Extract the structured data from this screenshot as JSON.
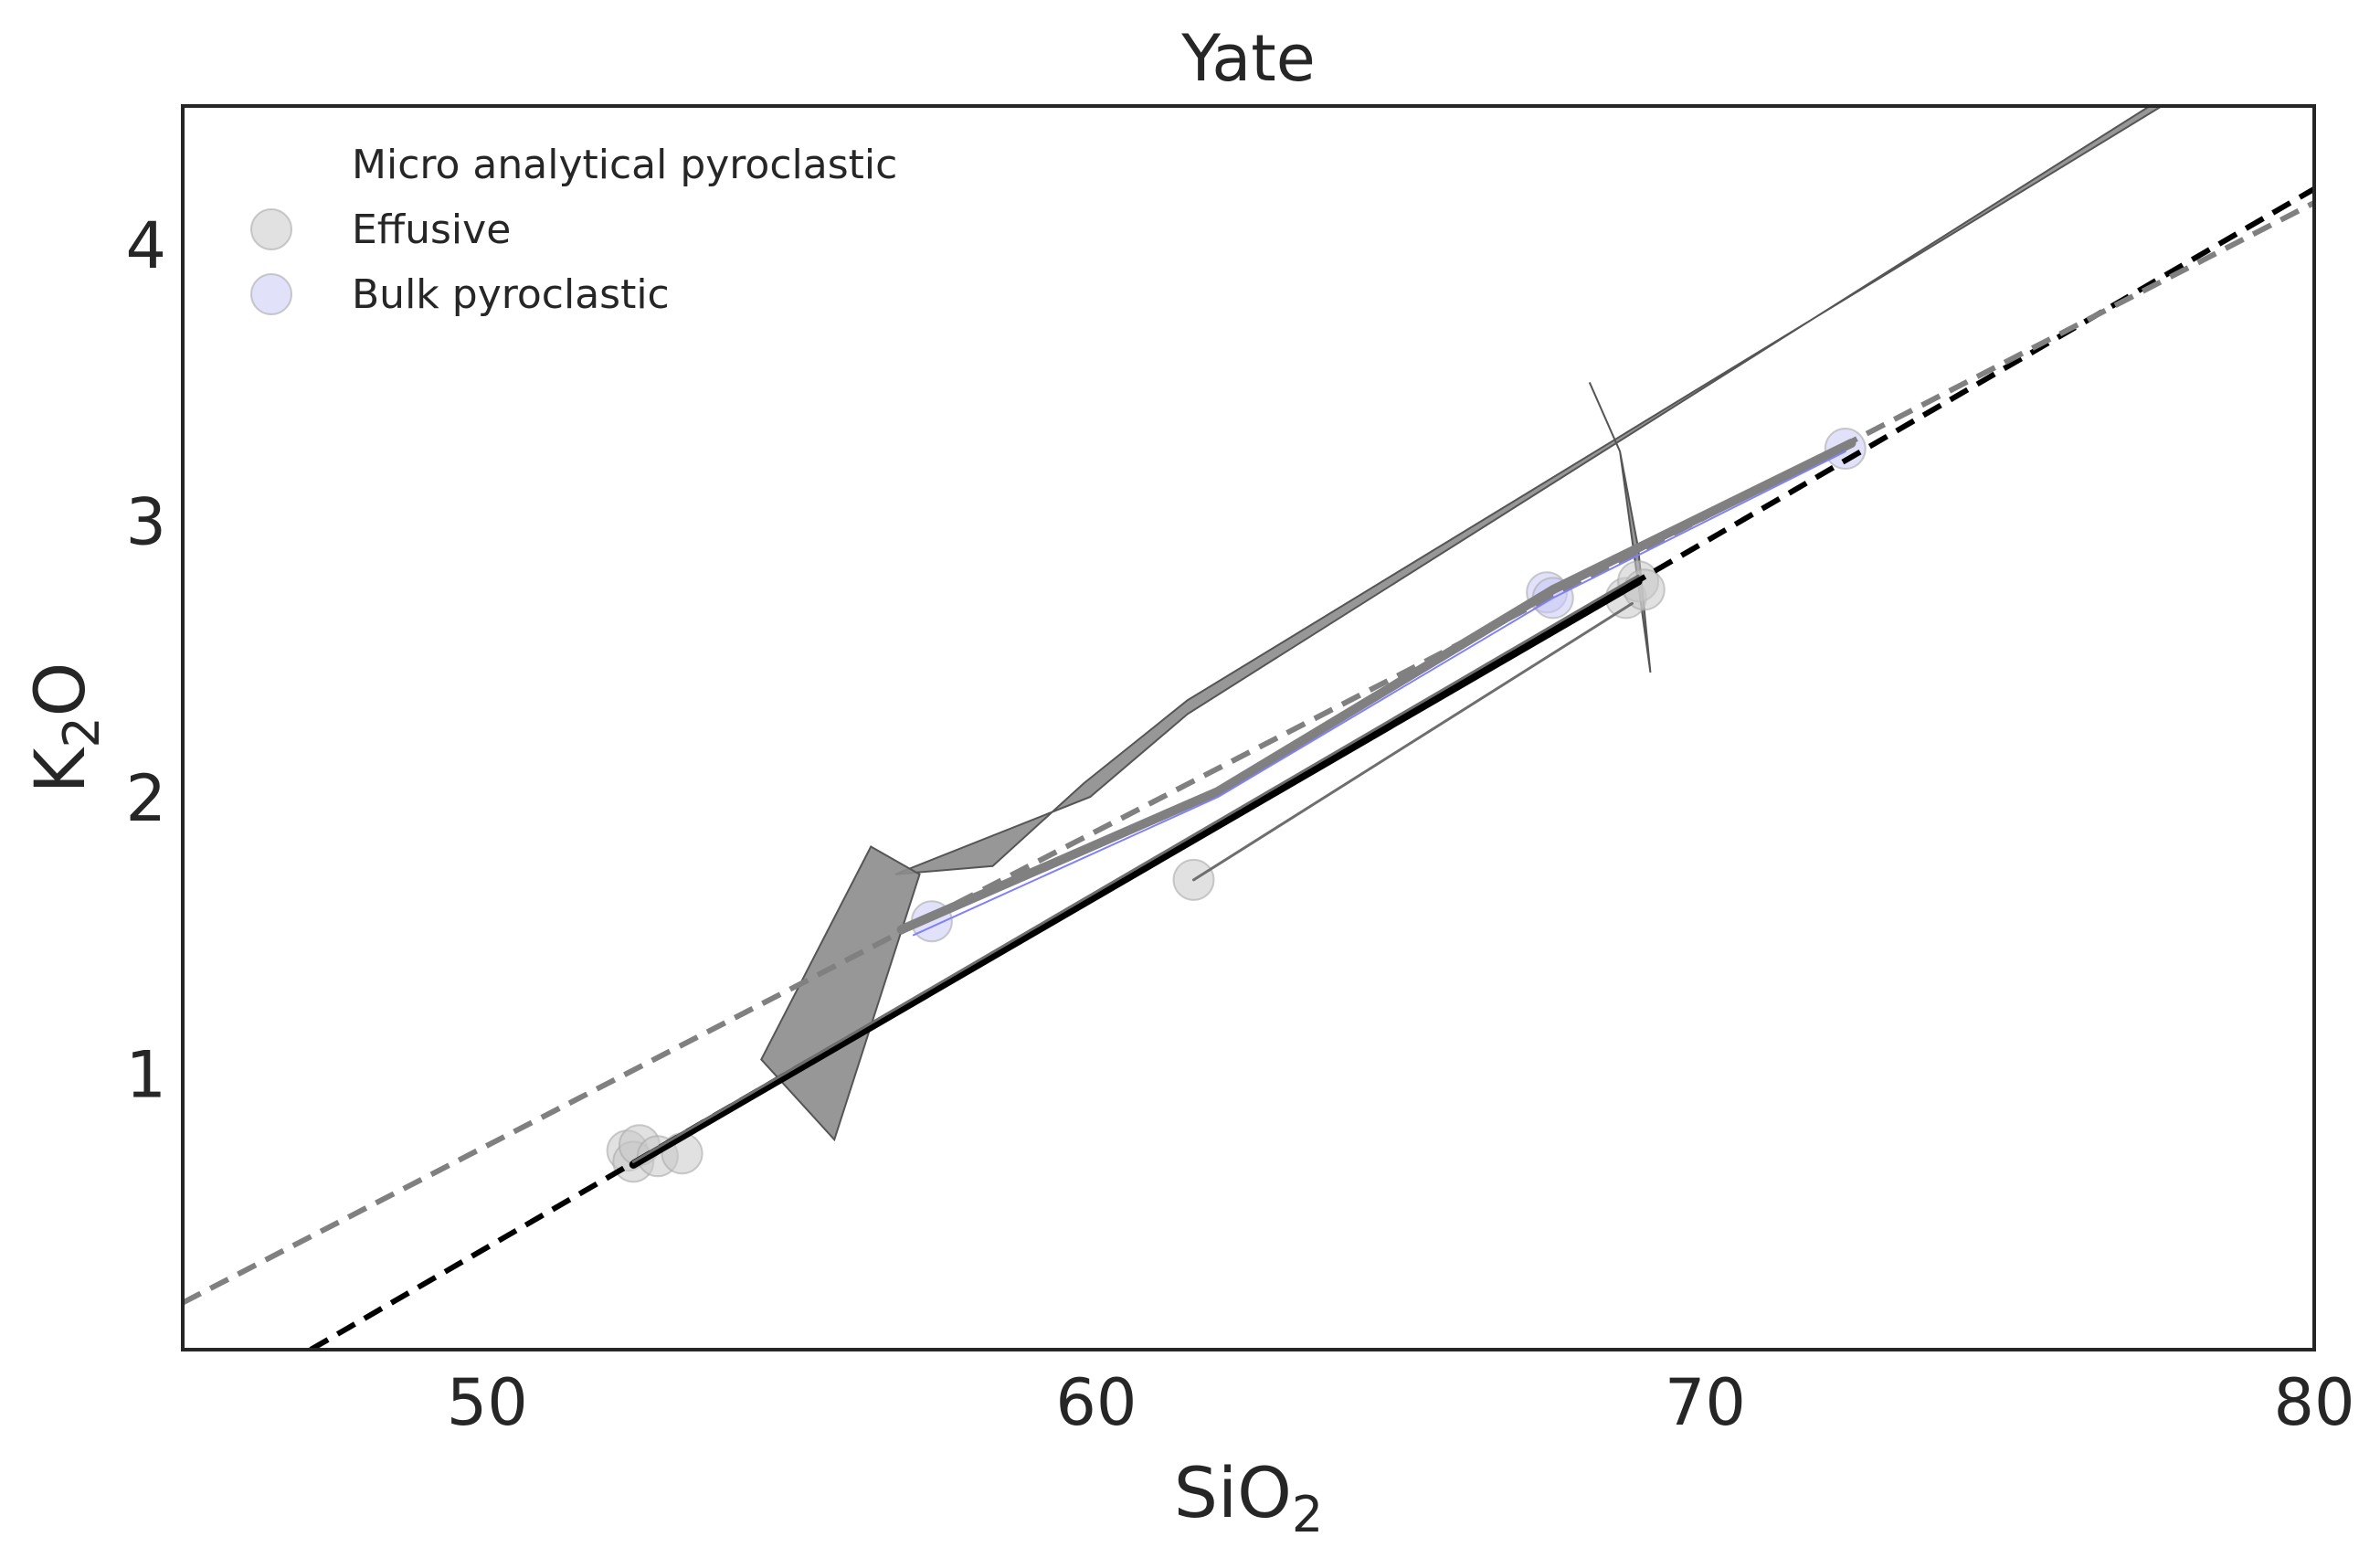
{
  "chart_data": {
    "type": "scatter",
    "title": "Yate",
    "xlabel": {
      "main": "SiO",
      "sub": "2"
    },
    "ylabel": {
      "main": "K",
      "sub": "2",
      "tail": "O"
    },
    "xlim": [
      45,
      80
    ],
    "ylim": [
      0,
      4.5
    ],
    "xticks": [
      50,
      60,
      70,
      80
    ],
    "yticks": [
      1,
      2,
      3,
      4
    ],
    "grid": false,
    "legend": {
      "placement": "top-left",
      "entries": [
        {
          "name": "Micro analytical pyroclastic",
          "color": "none"
        },
        {
          "name": "Effusive",
          "color": "#c8c8c8"
        },
        {
          "name": "Bulk pyroclastic",
          "color": "#c8c8f5"
        }
      ]
    },
    "series": [
      {
        "name": "Effusive",
        "color": "#c8c8c8",
        "points": [
          {
            "x": 52.3,
            "y": 0.72
          },
          {
            "x": 52.4,
            "y": 0.68
          },
          {
            "x": 52.5,
            "y": 0.74
          },
          {
            "x": 52.8,
            "y": 0.7
          },
          {
            "x": 53.2,
            "y": 0.71
          },
          {
            "x": 61.6,
            "y": 1.7
          },
          {
            "x": 68.7,
            "y": 2.72
          },
          {
            "x": 68.9,
            "y": 2.78
          },
          {
            "x": 69.0,
            "y": 2.75
          }
        ]
      },
      {
        "name": "Bulk pyroclastic",
        "color": "#c8c8f5",
        "points": [
          {
            "x": 57.3,
            "y": 1.55
          },
          {
            "x": 67.4,
            "y": 2.74
          },
          {
            "x": 67.5,
            "y": 2.72
          },
          {
            "x": 72.3,
            "y": 3.26
          }
        ]
      }
    ],
    "regions": [
      {
        "fill": "#8c8c8c",
        "points": [
          [
            56.7,
            1.72
          ],
          [
            58.3,
            1.75
          ],
          [
            59.8,
            2.05
          ],
          [
            61.5,
            2.35
          ],
          [
            77.5,
            4.5
          ],
          [
            77.3,
            4.5
          ],
          [
            61.5,
            2.3
          ],
          [
            59.9,
            2.0
          ]
        ]
      },
      {
        "fill": "#8c8c8c",
        "points": [
          [
            56.3,
            1.82
          ],
          [
            57.1,
            1.72
          ],
          [
            55.7,
            0.76
          ],
          [
            54.5,
            1.05
          ]
        ]
      },
      {
        "fill": "#8c8c8c",
        "points": [
          [
            68.1,
            3.5
          ],
          [
            68.6,
            3.25
          ],
          [
            69.1,
            2.45
          ],
          [
            68.9,
            2.9
          ],
          [
            68.6,
            3.25
          ]
        ]
      }
    ],
    "lines": [
      {
        "color": "#000000",
        "width": 9,
        "dash": false,
        "points": [
          [
            52.4,
            0.67
          ],
          [
            68.9,
            2.78
          ]
        ]
      },
      {
        "color": "#000000",
        "width": 6,
        "dash": true,
        "points": [
          [
            47.1,
            0.0
          ],
          [
            80.0,
            4.2
          ]
        ]
      },
      {
        "color": "#808080",
        "width": 6,
        "dash": true,
        "points": [
          [
            45.0,
            0.17
          ],
          [
            80.0,
            4.15
          ]
        ]
      },
      {
        "color": "#808080",
        "width": 10,
        "dash": false,
        "points": [
          [
            56.8,
            1.52
          ],
          [
            62.0,
            2.02
          ],
          [
            67.5,
            2.75
          ],
          [
            72.4,
            3.28
          ]
        ]
      },
      {
        "color": "#8080ff",
        "width": 2,
        "dash": false,
        "points": [
          [
            57.0,
            1.5
          ],
          [
            62.0,
            2.0
          ],
          [
            67.5,
            2.72
          ],
          [
            72.3,
            3.25
          ]
        ]
      },
      {
        "color": "#6e6e6e",
        "width": 3,
        "dash": false,
        "points": [
          [
            61.6,
            1.7
          ],
          [
            68.8,
            2.7
          ]
        ]
      },
      {
        "color": "#6e6e6e",
        "width": 3,
        "dash": false,
        "points": [
          [
            52.4,
            0.68
          ],
          [
            68.9,
            2.8
          ]
        ]
      }
    ]
  }
}
